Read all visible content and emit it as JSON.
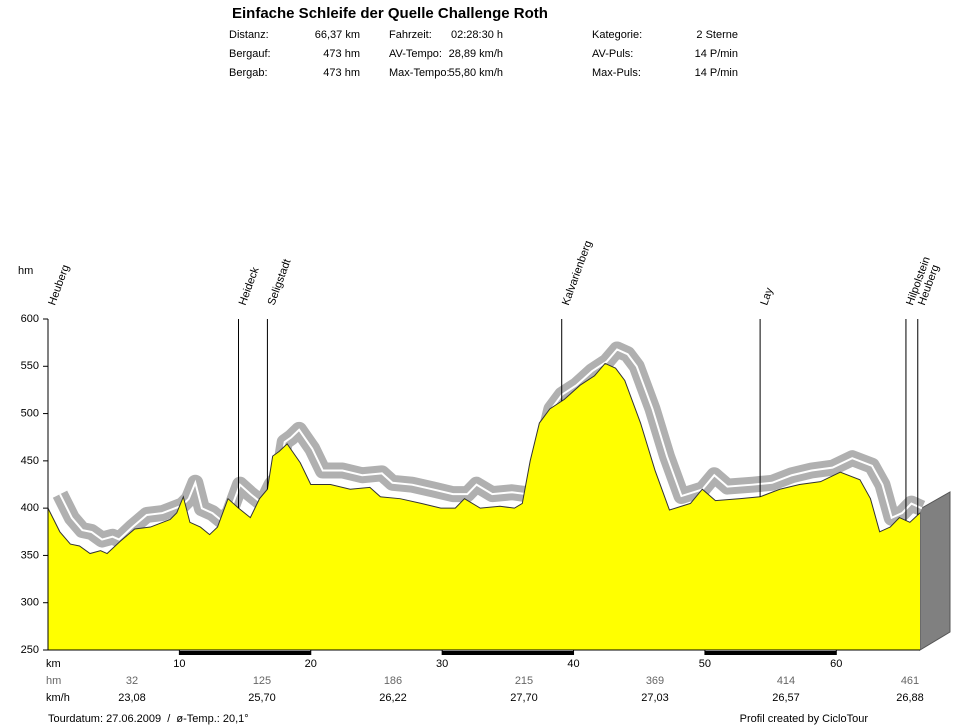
{
  "chart_data": {
    "type": "area",
    "title": "Einfache Schleife der Quelle Challenge Roth",
    "stats": [
      [
        [
          "Distanz:",
          "66,37 km"
        ],
        [
          "Fahrzeit:",
          "02:28:30 h"
        ],
        [
          "Kategorie:",
          "2 Sterne"
        ]
      ],
      [
        [
          "Bergauf:",
          "473 hm"
        ],
        [
          "AV-Tempo:",
          "28,89 km/h"
        ],
        [
          "AV-Puls:",
          "14 P/min"
        ]
      ],
      [
        [
          "Bergab:",
          "473 hm"
        ],
        [
          "Max-Tempo:",
          "55,80 km/h"
        ],
        [
          "Max-Puls:",
          "14 P/min"
        ]
      ]
    ],
    "y_label": "hm",
    "x_label": "km",
    "color": "#ffff00",
    "x": [
      0,
      0.9,
      1.7,
      2.4,
      3.2,
      4.0,
      4.5,
      5.5,
      6.6,
      7.8,
      9.3,
      9.8,
      10.3,
      10.8,
      11.6,
      12.3,
      12.9,
      13.7,
      14.5,
      15.4,
      16.1,
      16.7,
      17.1,
      17.6,
      18.2,
      19.2,
      20.0,
      21.5,
      23.0,
      24.5,
      25.3,
      26.8,
      28.4,
      29.9,
      31.0,
      31.7,
      32.9,
      34.4,
      35.5,
      36.1,
      36.7,
      37.4,
      38.2,
      39.3,
      40.5,
      41.6,
      42.4,
      43.2,
      43.9,
      45.1,
      46.2,
      47.3,
      48.9,
      49.8,
      50.8,
      52.7,
      54.2,
      55.7,
      57.2,
      58.8,
      60.3,
      61.8,
      62.6,
      63.3,
      64.1,
      64.8,
      65.6,
      66.37
    ],
    "values": [
      400,
      375,
      362,
      360,
      352,
      355,
      352,
      365,
      378,
      380,
      388,
      395,
      412,
      385,
      380,
      372,
      380,
      410,
      400,
      390,
      410,
      420,
      455,
      460,
      468,
      448,
      425,
      425,
      420,
      422,
      412,
      410,
      405,
      400,
      400,
      410,
      400,
      402,
      400,
      405,
      450,
      490,
      505,
      515,
      530,
      540,
      553,
      548,
      535,
      490,
      440,
      398,
      405,
      420,
      408,
      410,
      412,
      420,
      425,
      428,
      438,
      430,
      410,
      375,
      380,
      390,
      385,
      395
    ],
    "xlim": [
      0,
      66.37
    ],
    "ylim": [
      250,
      600
    ],
    "xticks": [
      10,
      20,
      30,
      40,
      50,
      60
    ],
    "yticks": [
      250,
      300,
      350,
      400,
      450,
      500,
      550,
      600
    ],
    "waypoints": [
      {
        "name": "Heuberg",
        "km": 0
      },
      {
        "name": "Heideck",
        "km": 14.5
      },
      {
        "name": "Seligstadt",
        "km": 16.7
      },
      {
        "name": "Kalvarienberg",
        "km": 39.1
      },
      {
        "name": "Lay",
        "km": 54.2
      },
      {
        "name": "Hilpolstein",
        "km": 65.3
      },
      {
        "name": "Heuberg",
        "km": 66.2
      }
    ],
    "hm_label": "hm",
    "hm_values": [
      32,
      125,
      186,
      215,
      369,
      414,
      461
    ],
    "kmh_label": "km/h",
    "kmh_values": [
      "23,08",
      "25,70",
      "26,22",
      "27,70",
      "27,03",
      "26,57",
      "26,88"
    ],
    "footer_left": "Tourdatum: 27.06.2009  /  ø-Temp.: 20,1°",
    "footer_right": "Profil created by CicloTour"
  }
}
